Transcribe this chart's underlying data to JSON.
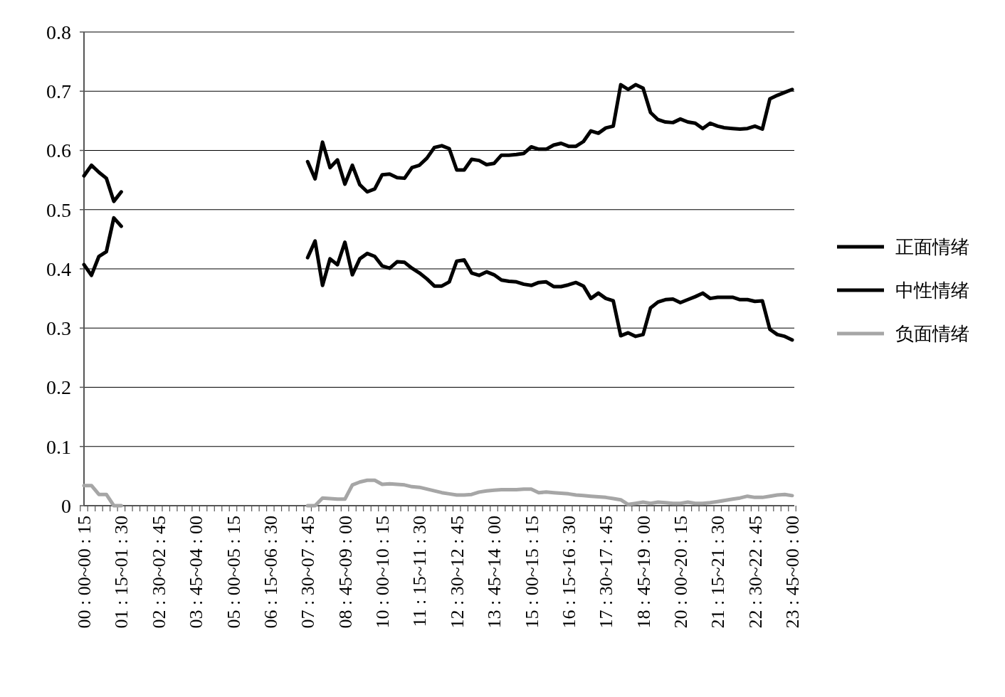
{
  "chart_data": {
    "type": "line",
    "categories": [
      "00 : 00~00 : 15",
      null,
      null,
      null,
      null,
      "01 : 15~01 : 30",
      null,
      null,
      null,
      null,
      "02 : 30~02 : 45",
      null,
      null,
      null,
      null,
      "03 : 45~04 : 00",
      null,
      null,
      null,
      null,
      "05 : 00~05 : 15",
      null,
      null,
      null,
      null,
      "06 : 15~06 : 30",
      null,
      null,
      null,
      null,
      "07 : 30~07 : 45",
      null,
      null,
      null,
      null,
      "08 : 45~09 : 00",
      null,
      null,
      null,
      null,
      "10 : 00~10 : 15",
      null,
      null,
      null,
      null,
      "11 : 15~11 : 30",
      null,
      null,
      null,
      null,
      "12 : 30~12 : 45",
      null,
      null,
      null,
      null,
      "13 : 45~14 : 00",
      null,
      null,
      null,
      null,
      "15 : 00~15 : 15",
      null,
      null,
      null,
      null,
      "16 : 15~16 : 30",
      null,
      null,
      null,
      null,
      "17 : 30~17 : 45",
      null,
      null,
      null,
      null,
      "18 : 45~19 : 00",
      null,
      null,
      null,
      null,
      "20 : 00~20 : 15",
      null,
      null,
      null,
      null,
      "21 : 15~21 : 30",
      null,
      null,
      null,
      null,
      "22 : 30~22 : 45",
      null,
      null,
      null,
      null,
      "23 : 45~00 : 00"
    ],
    "series": [
      {
        "name": "正面情绪",
        "color": "#000000",
        "values": [
          0.557,
          0.575,
          0.563,
          0.553,
          0.514,
          0.53,
          null,
          null,
          null,
          null,
          null,
          null,
          null,
          null,
          null,
          null,
          null,
          null,
          null,
          null,
          null,
          null,
          null,
          null,
          null,
          null,
          null,
          null,
          null,
          null,
          0.581,
          0.552,
          0.614,
          0.571,
          0.584,
          0.543,
          0.575,
          0.542,
          0.53,
          0.535,
          0.559,
          0.56,
          0.554,
          0.553,
          0.571,
          0.575,
          0.587,
          0.605,
          0.608,
          0.603,
          0.567,
          0.567,
          0.585,
          0.583,
          0.576,
          0.578,
          0.592,
          0.592,
          0.593,
          0.595,
          0.606,
          0.602,
          0.602,
          0.609,
          0.612,
          0.607,
          0.607,
          0.615,
          0.633,
          0.629,
          0.638,
          0.641,
          0.711,
          0.703,
          0.711,
          0.705,
          0.664,
          0.652,
          0.648,
          0.647,
          0.653,
          0.648,
          0.646,
          0.637,
          0.646,
          0.641,
          0.638,
          0.637,
          0.636,
          0.637,
          0.641,
          0.636,
          0.687,
          0.693,
          0.698,
          0.703
        ]
      },
      {
        "name": "中性情绪",
        "color": "#000000",
        "values": [
          0.407,
          0.389,
          0.421,
          0.429,
          0.486,
          0.472,
          null,
          null,
          null,
          null,
          null,
          null,
          null,
          null,
          null,
          null,
          null,
          null,
          null,
          null,
          null,
          null,
          null,
          null,
          null,
          null,
          null,
          null,
          null,
          null,
          0.419,
          0.447,
          0.372,
          0.417,
          0.407,
          0.445,
          0.39,
          0.417,
          0.426,
          0.421,
          0.405,
          0.401,
          0.412,
          0.411,
          0.401,
          0.393,
          0.383,
          0.371,
          0.371,
          0.378,
          0.413,
          0.415,
          0.393,
          0.389,
          0.395,
          0.39,
          0.381,
          0.379,
          0.378,
          0.374,
          0.372,
          0.377,
          0.378,
          0.37,
          0.37,
          0.373,
          0.377,
          0.371,
          0.35,
          0.359,
          0.35,
          0.346,
          0.287,
          0.292,
          0.286,
          0.289,
          0.334,
          0.344,
          0.348,
          0.349,
          0.343,
          0.348,
          0.353,
          0.359,
          0.35,
          0.352,
          0.352,
          0.352,
          0.348,
          0.348,
          0.345,
          0.346,
          0.298,
          0.289,
          0.286,
          0.28
        ]
      },
      {
        "name": "负面情绪",
        "color": "#a6a6a6",
        "values": [
          0.034,
          0.034,
          0.019,
          0.019,
          0,
          0,
          null,
          null,
          null,
          null,
          null,
          null,
          null,
          null,
          null,
          null,
          null,
          null,
          null,
          null,
          null,
          null,
          null,
          null,
          null,
          null,
          null,
          null,
          null,
          null,
          0,
          0,
          0.013,
          0.012,
          0.011,
          0.011,
          0.035,
          0.04,
          0.043,
          0.043,
          0.036,
          0.037,
          0.036,
          0.035,
          0.032,
          0.031,
          0.028,
          0.025,
          0.022,
          0.02,
          0.018,
          0.018,
          0.019,
          0.023,
          0.025,
          0.026,
          0.027,
          0.027,
          0.027,
          0.028,
          0.028,
          0.022,
          0.023,
          0.022,
          0.021,
          0.02,
          0.018,
          0.017,
          0.016,
          0.015,
          0.014,
          0.012,
          0.01,
          0.002,
          0.004,
          0.006,
          0.004,
          0.006,
          0.005,
          0.004,
          0.004,
          0.006,
          0.004,
          0.004,
          0.005,
          0.007,
          0.009,
          0.011,
          0.013,
          0.016,
          0.014,
          0.014,
          0.016,
          0.018,
          0.019,
          0.017
        ]
      }
    ],
    "ylim": [
      0,
      0.8
    ],
    "yticks": [
      0,
      0.1,
      0.2,
      0.3,
      0.4,
      0.5,
      0.6,
      0.7,
      0.8
    ],
    "grid": "y",
    "legend": "right",
    "marker": "none",
    "line_style": "solid"
  }
}
